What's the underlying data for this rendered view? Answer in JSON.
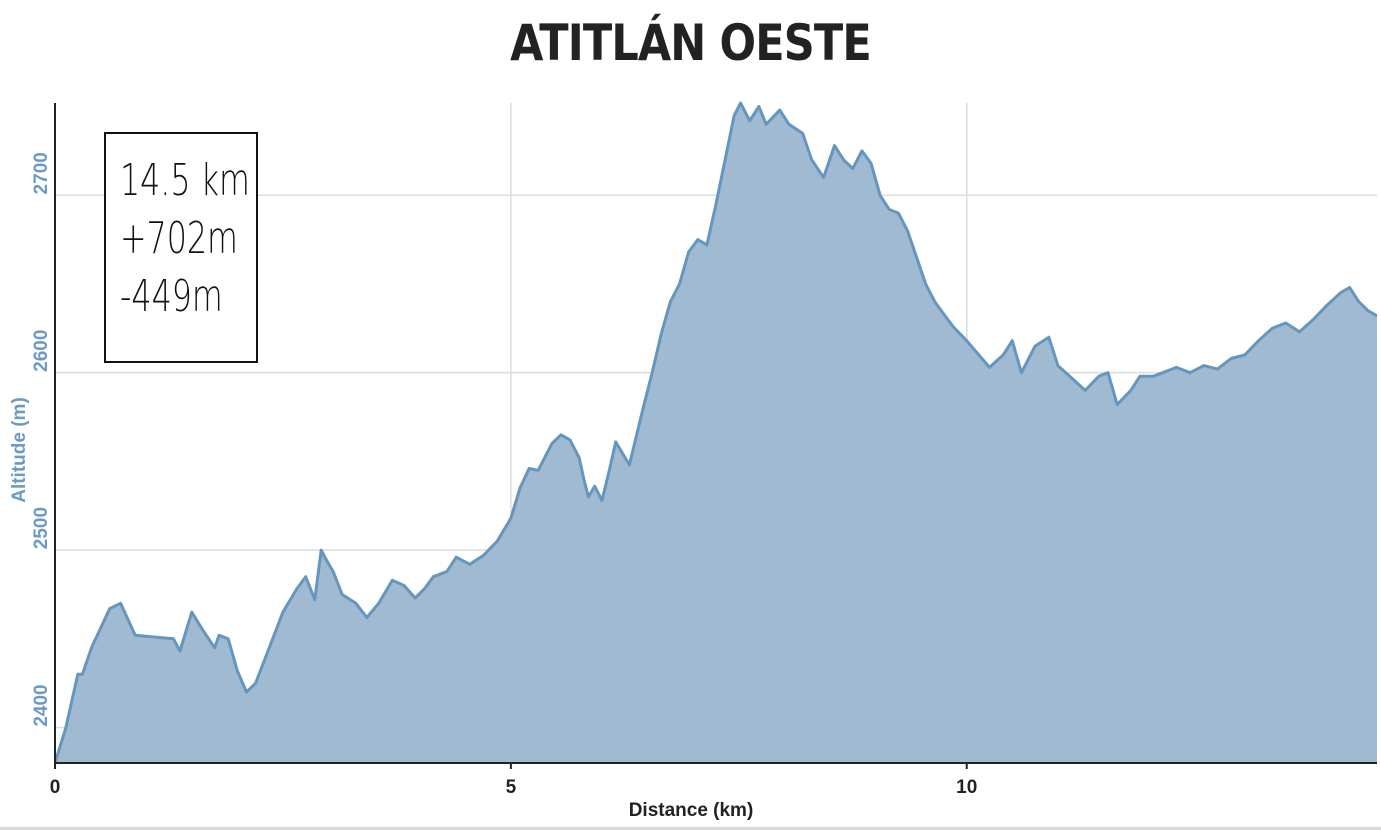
{
  "page": {
    "title": "ATITLÁN OESTE"
  },
  "stats": {
    "distance": "14.5 km",
    "ascent": "+702m",
    "descent": "-449m"
  },
  "chart_data": {
    "type": "area",
    "title": "ATITLÁN OESTE",
    "xlabel": "Distance (km)",
    "ylabel": "Altitude (m)",
    "xlim": [
      0,
      14.5
    ],
    "ylim": [
      2380,
      2752
    ],
    "xticks": [
      "0",
      "5",
      "10"
    ],
    "yticks": [
      "2400",
      "2500",
      "2600",
      "2700"
    ],
    "grid": true,
    "legend": "none",
    "colors": {
      "fill": "#a0bbd1",
      "line": "#6596bf",
      "axis_tick_y": "#6b9ac4"
    },
    "x": [
      0,
      0.12,
      0.25,
      0.3,
      0.4,
      0.6,
      0.72,
      0.88,
      1.3,
      1.37,
      1.5,
      1.62,
      1.75,
      1.8,
      1.9,
      2.0,
      2.1,
      2.2,
      2.35,
      2.5,
      2.65,
      2.75,
      2.85,
      2.92,
      2.97,
      3.05,
      3.15,
      3.3,
      3.42,
      3.55,
      3.7,
      3.83,
      3.95,
      4.05,
      4.15,
      4.3,
      4.4,
      4.55,
      4.7,
      4.85,
      5.0,
      5.1,
      5.2,
      5.3,
      5.45,
      5.55,
      5.65,
      5.75,
      5.8,
      5.85,
      5.92,
      6.0,
      6.08,
      6.15,
      6.3,
      6.45,
      6.55,
      6.65,
      6.75,
      6.85,
      6.95,
      7.05,
      7.15,
      7.25,
      7.35,
      7.45,
      7.52,
      7.62,
      7.72,
      7.8,
      7.95,
      8.05,
      8.2,
      8.3,
      8.43,
      8.55,
      8.65,
      8.75,
      8.85,
      8.95,
      9.05,
      9.15,
      9.25,
      9.35,
      9.45,
      9.55,
      9.65,
      9.72,
      9.85,
      10.0,
      10.1,
      10.25,
      10.4,
      10.5,
      10.6,
      10.75,
      10.9,
      11.0,
      11.15,
      11.3,
      11.45,
      11.55,
      11.65,
      11.8,
      11.9,
      12.05,
      12.15,
      12.3,
      12.45,
      12.6,
      12.75,
      12.9,
      13.05,
      13.2,
      13.35,
      13.5,
      13.65,
      13.8,
      13.95,
      14.1,
      14.2,
      14.3,
      14.4,
      14.5
    ],
    "values": [
      2380,
      2400,
      2430,
      2430,
      2445,
      2467,
      2470,
      2452,
      2450,
      2443,
      2465,
      2455,
      2445,
      2452,
      2450,
      2432,
      2420,
      2425,
      2445,
      2465,
      2478,
      2485,
      2472,
      2500,
      2495,
      2488,
      2475,
      2470,
      2462,
      2470,
      2483,
      2480,
      2473,
      2478,
      2485,
      2488,
      2496,
      2492,
      2497,
      2505,
      2518,
      2535,
      2546,
      2545,
      2560,
      2565,
      2562,
      2552,
      2540,
      2530,
      2536,
      2528,
      2545,
      2561,
      2548,
      2580,
      2600,
      2622,
      2640,
      2650,
      2668,
      2675,
      2672,
      2695,
      2720,
      2745,
      2752,
      2742,
      2750,
      2740,
      2748,
      2740,
      2735,
      2720,
      2710,
      2728,
      2720,
      2715,
      2725,
      2718,
      2700,
      2692,
      2690,
      2680,
      2665,
      2650,
      2640,
      2635,
      2626,
      2618,
      2612,
      2603,
      2610,
      2618,
      2600,
      2615,
      2620,
      2604,
      2597,
      2590,
      2598,
      2600,
      2582,
      2590,
      2598,
      2598,
      2600,
      2603,
      2600,
      2604,
      2602,
      2608,
      2610,
      2618,
      2625,
      2628,
      2623,
      2630,
      2638,
      2645,
      2648,
      2640,
      2635,
      2632
    ]
  }
}
